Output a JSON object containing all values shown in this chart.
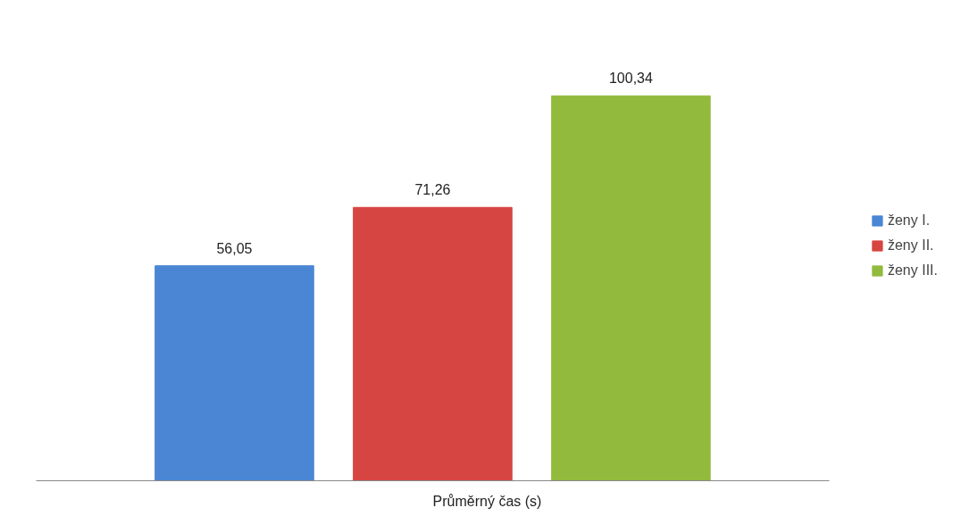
{
  "chart_data": {
    "type": "bar",
    "categories": [
      null
    ],
    "xlabel": "Průměrný čas (s)",
    "series": [
      {
        "name": "ženy I.",
        "color": "#4a86d4",
        "values": [
          56.05
        ],
        "value_labels": [
          "56,05"
        ]
      },
      {
        "name": "ženy II.",
        "color": "#d64541",
        "values": [
          71.26
        ],
        "value_labels": [
          "71,26"
        ]
      },
      {
        "name": "ženy III.",
        "color": "#92bb3e",
        "values": [
          100.34
        ],
        "value_labels": [
          "100,34"
        ]
      }
    ],
    "legend": "right",
    "grid": false
  }
}
